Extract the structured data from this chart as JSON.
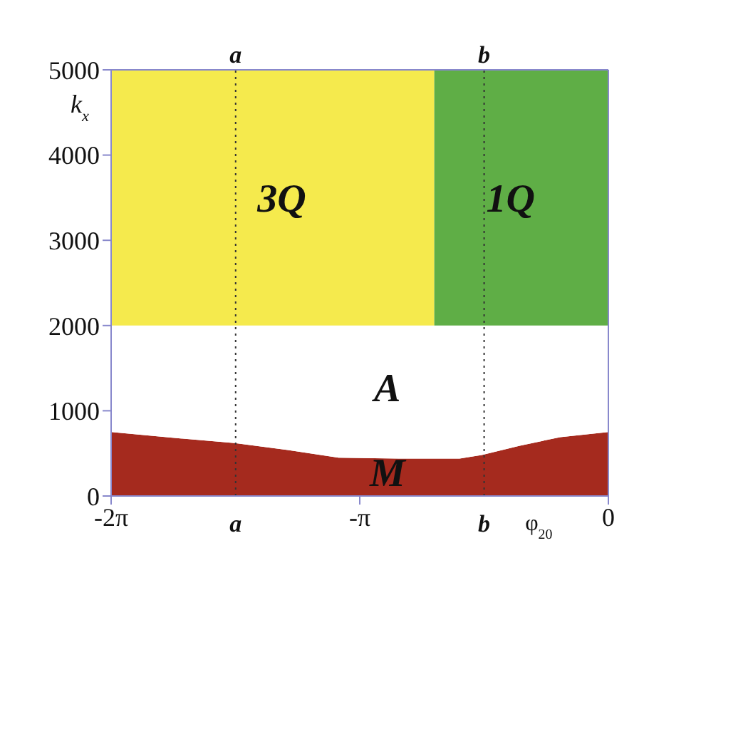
{
  "chart_data": {
    "type": "area",
    "stacked": true,
    "xlabel": "φ$_{20}$",
    "ylabel": "k$_{x}$",
    "x": [
      -6.28,
      -5.58,
      -4.72,
      -4.05,
      -3.41,
      -2.65,
      -2.2,
      -2.2,
      -1.88,
      -1.6,
      -1.12,
      -0.61,
      0
    ],
    "series": [
      {
        "name": "M",
        "color": "#a52a1e",
        "values": [
          750,
          690,
          620,
          540,
          450,
          440,
          440,
          440,
          440,
          480,
          590,
          690,
          750
        ]
      },
      {
        "name": "A",
        "color": "#ffffff",
        "values": [
          1250,
          1310,
          1380,
          1460,
          1550,
          1560,
          1560,
          1560,
          1560,
          1520,
          1410,
          1310,
          1250
        ]
      },
      {
        "name": "3Q",
        "color": "#f5ea4d",
        "values": [
          3000,
          3000,
          3000,
          3000,
          3000,
          3000,
          3000,
          null,
          null,
          null,
          null,
          null,
          null
        ]
      },
      {
        "name": "1Q",
        "color": "#5fae46",
        "values": [
          null,
          null,
          null,
          null,
          null,
          null,
          null,
          3000,
          3000,
          3000,
          3000,
          3000,
          3000
        ]
      }
    ],
    "xlim": [
      -6.2832,
      0
    ],
    "xticks": [
      {
        "value": -6.2832,
        "label": "-2π"
      },
      {
        "value": -3.1416,
        "label": "-π"
      },
      0
    ],
    "ylim": [
      0,
      5000
    ],
    "yticks": [
      0,
      1000,
      2000,
      3000,
      4000,
      5000
    ],
    "ref_lines": [
      {
        "axis": "x",
        "value": -4.71,
        "label": "a",
        "line_style": "dotted"
      },
      {
        "axis": "x",
        "value": -1.57,
        "label": "b",
        "line_style": "dotted"
      }
    ],
    "legend": false,
    "grid": false
  }
}
